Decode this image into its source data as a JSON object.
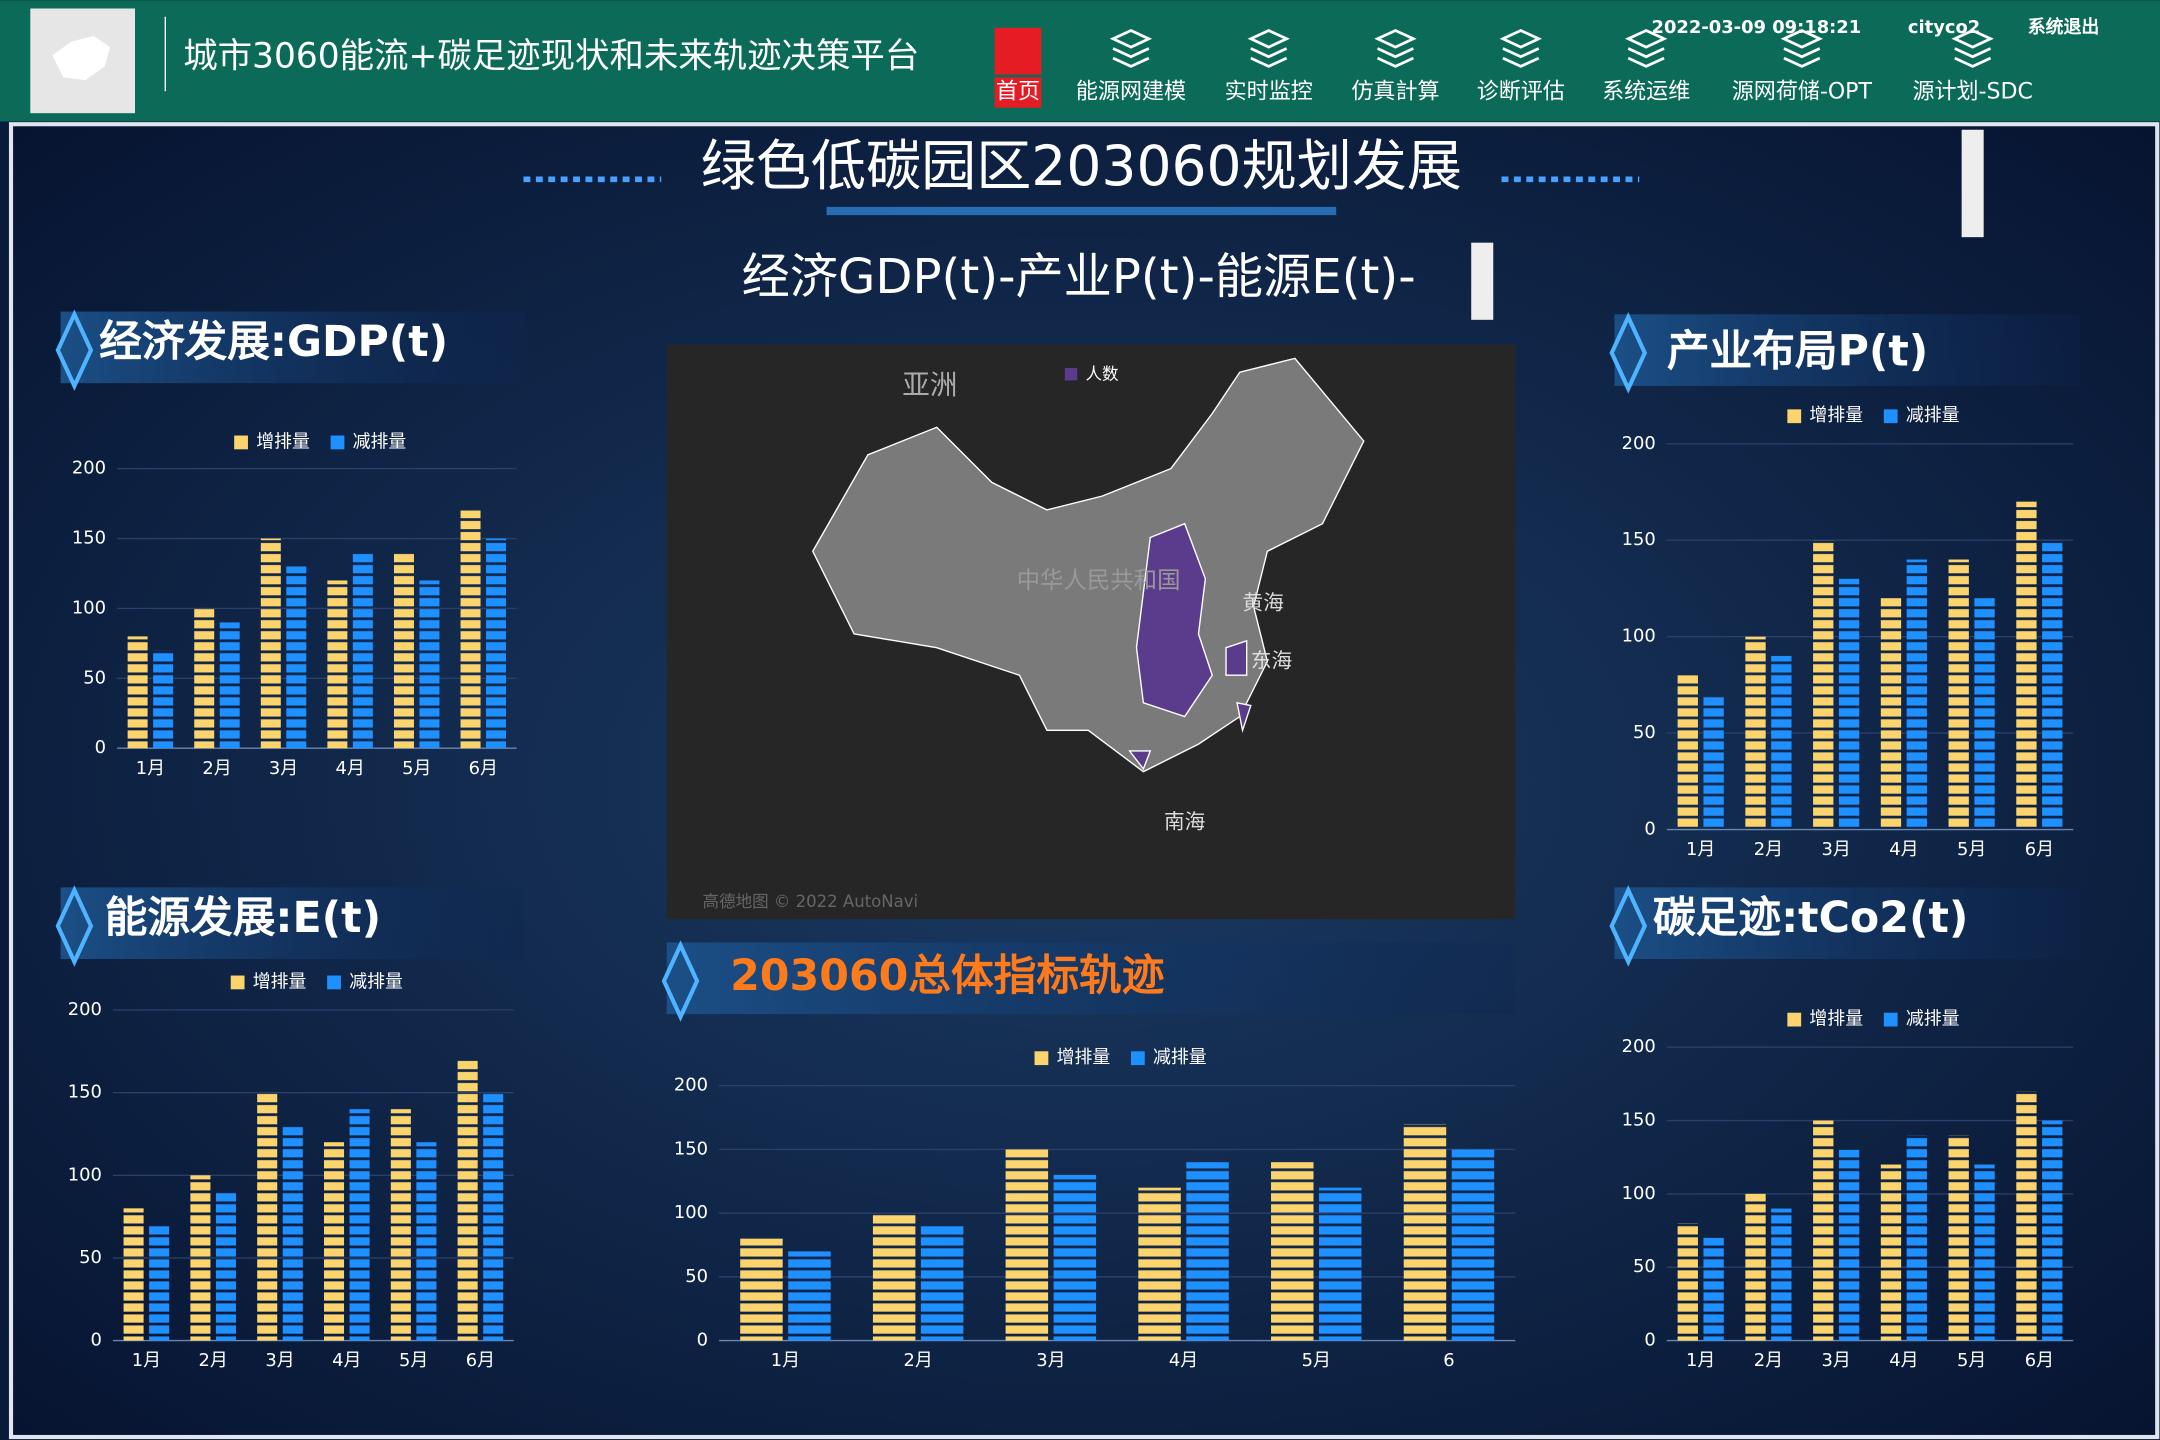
{
  "header": {
    "title": "城市3060能流+碳足迹现状和未来轨迹决策平台",
    "datetime": "2022-03-09 09:18:21",
    "user": "cityco2",
    "logout": "系统退出",
    "nav": [
      "首页",
      "能源网建模",
      "实时监控",
      "仿真計算",
      "诊断评估",
      "系统运维",
      "源网荷储-OPT",
      "源计划-SDC"
    ]
  },
  "banner": {
    "title": "绿色低碳园区203060规划发展",
    "subtitle": "经济GDP(t)-产业P(t)-能源E(t)-"
  },
  "map": {
    "legend": "人数",
    "labels": [
      "亚洲",
      "中华人民共和国",
      "黄海",
      "东海",
      "南海"
    ],
    "attribution": "高德地图 © 2022 AutoNavi"
  },
  "chart_data": [
    {
      "type": "bar",
      "title": "经济发展:GDP(t)",
      "categories": [
        "1月",
        "2月",
        "3月",
        "4月",
        "5月",
        "6月"
      ],
      "series": [
        {
          "name": "增排量",
          "color": "#fcd46e",
          "values": [
            80,
            100,
            150,
            120,
            140,
            170
          ]
        },
        {
          "name": "减排量",
          "color": "#1e90ff",
          "values": [
            70,
            90,
            130,
            140,
            120,
            150
          ]
        }
      ],
      "ylim": [
        0,
        200
      ],
      "yticks": [
        0,
        50,
        100,
        150,
        200
      ]
    },
    {
      "type": "bar",
      "title": "能源发展:E(t)",
      "categories": [
        "1月",
        "2月",
        "3月",
        "4月",
        "5月",
        "6月"
      ],
      "series": [
        {
          "name": "增排量",
          "color": "#fcd46e",
          "values": [
            80,
            100,
            150,
            120,
            140,
            170
          ]
        },
        {
          "name": "减排量",
          "color": "#1e90ff",
          "values": [
            70,
            90,
            130,
            140,
            120,
            150
          ]
        }
      ],
      "ylim": [
        0,
        200
      ],
      "yticks": [
        0,
        50,
        100,
        150,
        200
      ]
    },
    {
      "type": "bar",
      "title": "产业布局P(t)",
      "categories": [
        "1月",
        "2月",
        "3月",
        "4月",
        "5月",
        "6月"
      ],
      "series": [
        {
          "name": "增排量",
          "color": "#fcd46e",
          "values": [
            80,
            100,
            150,
            120,
            140,
            170
          ]
        },
        {
          "name": "减排量",
          "color": "#1e90ff",
          "values": [
            70,
            90,
            130,
            140,
            120,
            150
          ]
        }
      ],
      "ylim": [
        0,
        200
      ],
      "yticks": [
        0,
        50,
        100,
        150,
        200
      ]
    },
    {
      "type": "bar",
      "title": "碳足迹:tCo2(t)",
      "categories": [
        "1月",
        "2月",
        "3月",
        "4月",
        "5月",
        "6月"
      ],
      "series": [
        {
          "name": "增排量",
          "color": "#fcd46e",
          "values": [
            80,
            100,
            150,
            120,
            140,
            170
          ]
        },
        {
          "name": "减排量",
          "color": "#1e90ff",
          "values": [
            70,
            90,
            130,
            140,
            120,
            150
          ]
        }
      ],
      "ylim": [
        0,
        200
      ],
      "yticks": [
        0,
        50,
        100,
        150,
        200
      ]
    },
    {
      "type": "bar",
      "title": "203060总体指标轨迹",
      "categories": [
        "1月",
        "2月",
        "3月",
        "4月",
        "5月",
        "6"
      ],
      "series": [
        {
          "name": "增排量",
          "color": "#fcd46e",
          "values": [
            80,
            100,
            150,
            120,
            140,
            170
          ]
        },
        {
          "name": "减排量",
          "color": "#1e90ff",
          "values": [
            70,
            90,
            130,
            140,
            120,
            150
          ]
        }
      ],
      "ylim": [
        0,
        200
      ],
      "yticks": [
        0,
        50,
        100,
        150,
        200
      ]
    }
  ]
}
